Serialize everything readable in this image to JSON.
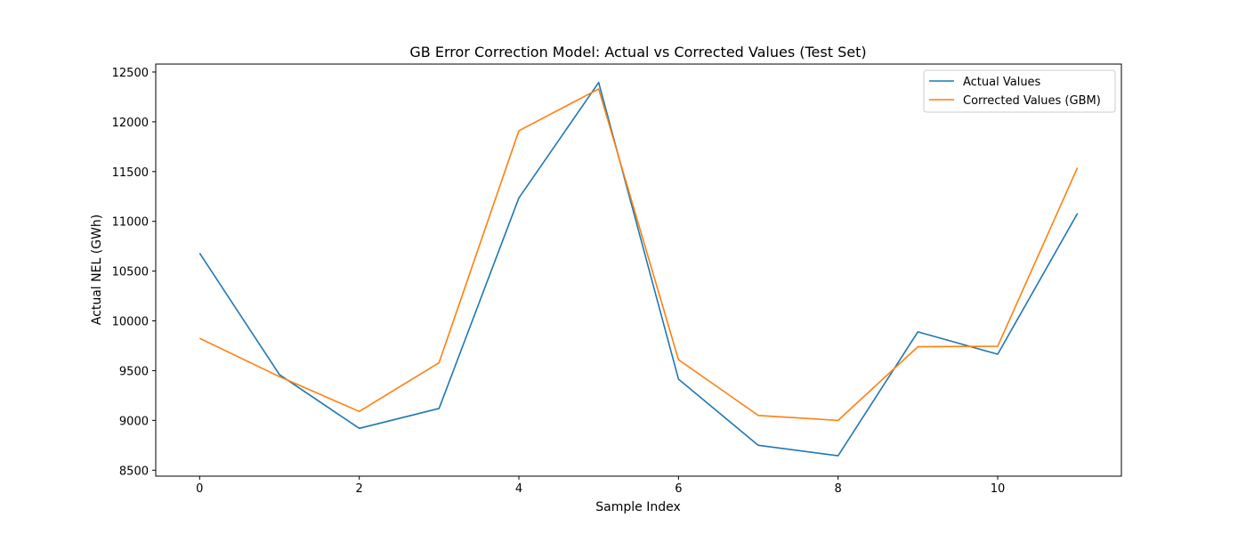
{
  "chart_data": {
    "type": "line",
    "title": "GB Error Correction Model: Actual vs Corrected Values (Test Set)",
    "xlabel": "Sample Index",
    "ylabel": "Actual NEL (GWh)",
    "x": [
      0,
      1,
      2,
      3,
      4,
      5,
      6,
      7,
      8,
      9,
      10,
      11
    ],
    "xlim": [
      -0.55,
      11.55
    ],
    "ylim": [
      8440,
      12580
    ],
    "xticks": [
      0,
      2,
      4,
      6,
      8,
      10
    ],
    "yticks": [
      8500,
      9000,
      9500,
      10000,
      10500,
      11000,
      11500,
      12000,
      12500
    ],
    "grid": false,
    "legend_position": "top-right",
    "series": [
      {
        "name": "Actual Values",
        "color": "#1f77b4",
        "values": [
          10680,
          9460,
          8920,
          9120,
          11235,
          12395,
          9415,
          8750,
          8645,
          9890,
          9665,
          11080
        ]
      },
      {
        "name": "Corrected Values (GBM)",
        "color": "#ff7f0e",
        "values": [
          9825,
          9440,
          9090,
          9580,
          11910,
          12330,
          9610,
          9050,
          9000,
          9740,
          9745,
          11540
        ]
      }
    ]
  }
}
